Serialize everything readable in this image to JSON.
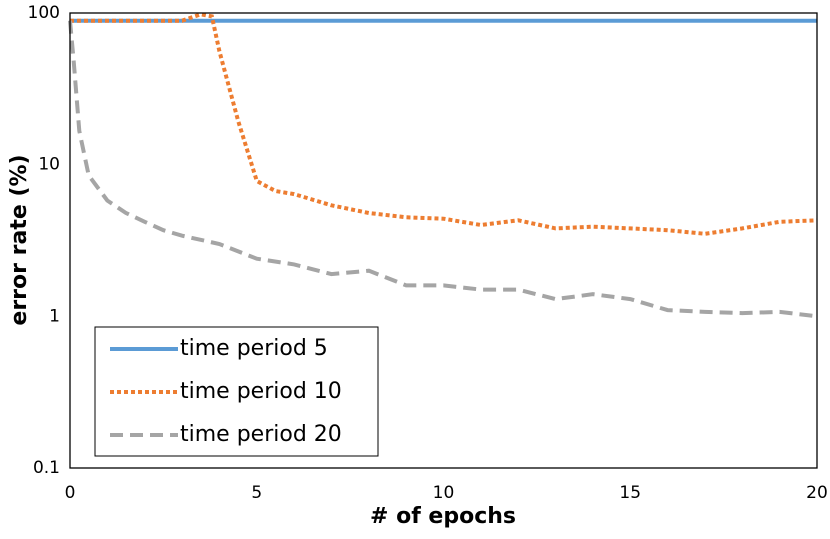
{
  "chart_data": {
    "type": "line",
    "x_label": "# of epochs",
    "y_label": "error rate (%)",
    "xlim": [
      0,
      20
    ],
    "xticks": [
      0,
      5,
      10,
      15,
      20
    ],
    "ylim": [
      0.1,
      100
    ],
    "yticks": [
      0.1,
      1,
      10,
      100
    ],
    "y_scale": "log",
    "grid": false,
    "legend": "lower-left",
    "series": [
      {
        "name": "time period 5",
        "color": "#5b9bd5",
        "dash": "solid",
        "x": [
          0,
          20
        ],
        "values": [
          89,
          89
        ]
      },
      {
        "name": "time period 10",
        "color": "#ed7d31",
        "dash": "dotted",
        "x": [
          0,
          1,
          2,
          3,
          3.5,
          3.8,
          4,
          4.5,
          5,
          5.5,
          6,
          7,
          8,
          9,
          10,
          11,
          12,
          13,
          14,
          15,
          16,
          17,
          18,
          19,
          20
        ],
        "values": [
          89,
          89,
          89,
          89,
          98,
          95,
          56,
          19.5,
          7.8,
          6.7,
          6.4,
          5.4,
          4.8,
          4.5,
          4.4,
          4.0,
          4.3,
          3.8,
          3.9,
          3.8,
          3.7,
          3.5,
          3.8,
          4.2,
          4.3
        ]
      },
      {
        "name": "time period 20",
        "color": "#a5a5a5",
        "dash": "dashed",
        "x": [
          0,
          0.1,
          0.25,
          0.5,
          1,
          1.5,
          2,
          2.5,
          3,
          4,
          5,
          6,
          7,
          8,
          9,
          10,
          11,
          12,
          13,
          14,
          15,
          16,
          17,
          18,
          19,
          20
        ],
        "values": [
          89,
          48,
          16.7,
          8.5,
          5.8,
          4.8,
          4.2,
          3.7,
          3.4,
          3.0,
          2.4,
          2.2,
          1.9,
          2.0,
          1.6,
          1.6,
          1.5,
          1.5,
          1.3,
          1.4,
          1.3,
          1.1,
          1.07,
          1.05,
          1.07,
          1.0
        ]
      }
    ]
  }
}
